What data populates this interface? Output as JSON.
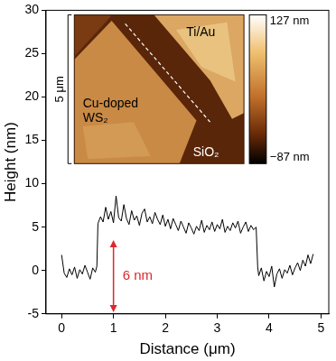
{
  "chart_data": {
    "type": "line",
    "x": [
      0,
      0.05,
      0.1,
      0.15,
      0.2,
      0.25,
      0.3,
      0.35,
      0.4,
      0.45,
      0.5,
      0.55,
      0.6,
      0.65,
      0.68,
      0.7,
      0.75,
      0.8,
      0.85,
      0.9,
      0.95,
      1.0,
      1.05,
      1.1,
      1.15,
      1.2,
      1.25,
      1.3,
      1.35,
      1.4,
      1.45,
      1.5,
      1.55,
      1.6,
      1.65,
      1.7,
      1.75,
      1.8,
      1.85,
      1.9,
      1.95,
      2.0,
      2.05,
      2.1,
      2.15,
      2.2,
      2.25,
      2.3,
      2.35,
      2.4,
      2.45,
      2.5,
      2.55,
      2.6,
      2.65,
      2.7,
      2.75,
      2.8,
      2.85,
      2.9,
      2.95,
      3.0,
      3.05,
      3.1,
      3.15,
      3.2,
      3.25,
      3.3,
      3.35,
      3.4,
      3.45,
      3.5,
      3.55,
      3.6,
      3.65,
      3.7,
      3.75,
      3.78,
      3.8,
      3.85,
      3.9,
      3.95,
      4.0,
      4.05,
      4.1,
      4.15,
      4.2,
      4.25,
      4.3,
      4.35,
      4.4,
      4.45,
      4.5,
      4.55,
      4.6,
      4.65,
      4.7,
      4.75,
      4.8,
      4.85
    ],
    "values": [
      1.8,
      -0.3,
      -0.8,
      0.2,
      -0.5,
      0.4,
      -0.9,
      0.1,
      -0.4,
      0.6,
      -0.2,
      -1.0,
      0.3,
      -0.2,
      0.5,
      5.4,
      6.2,
      5.6,
      7.3,
      5.9,
      6.8,
      5.5,
      8.6,
      6.1,
      5.7,
      7.6,
      6.0,
      5.3,
      6.9,
      5.8,
      6.3,
      5.2,
      6.6,
      7.1,
      5.6,
      6.2,
      5.4,
      6.7,
      5.9,
      5.3,
      6.4,
      5.1,
      5.9,
      4.8,
      6.0,
      5.3,
      4.6,
      5.7,
      5.0,
      4.3,
      5.5,
      4.9,
      4.2,
      5.1,
      4.6,
      5.8,
      4.4,
      5.2,
      4.7,
      5.6,
      4.5,
      5.3,
      4.8,
      5.9,
      4.4,
      5.1,
      4.6,
      5.5,
      4.9,
      5.7,
      4.3,
      5.0,
      5.6,
      4.5,
      5.2,
      4.7,
      5.0,
      0.4,
      -0.6,
      0.3,
      -1.2,
      -0.1,
      -0.7,
      0.5,
      -1.9,
      -0.4,
      0.2,
      -0.9,
      0.1,
      -0.3,
      0.6,
      -0.5,
      0.3,
      0.9,
      0.0,
      1.2,
      0.5,
      1.8,
      0.8,
      1.9
    ],
    "color": "#000000",
    "xlim": [
      -0.3,
      5.15
    ],
    "ylim": [
      -5,
      30
    ],
    "xticks": [
      0,
      1,
      2,
      3,
      4,
      5
    ],
    "yticks": [
      -5,
      0,
      5,
      10,
      15,
      20,
      25,
      30
    ],
    "x_label": "Distance (μm)",
    "y_label": "Height (nm)",
    "grid": false,
    "annotations": [
      {
        "text": "6 nm",
        "x": 1.0,
        "y_from": -4.8,
        "y_to": 3.5,
        "color": "#e0262a"
      }
    ],
    "inset": {
      "type": "image",
      "labels": [
        "Ti/Au",
        "Cu-doped WS₂",
        "SiO₂"
      ],
      "scale_bar": "5 μm",
      "colorbar": {
        "range": [
          -87,
          127
        ],
        "ticks": [
          {
            "value": 127,
            "label": "127 nm"
          },
          {
            "value": -87,
            "label": "−87 nm"
          }
        ]
      }
    }
  }
}
